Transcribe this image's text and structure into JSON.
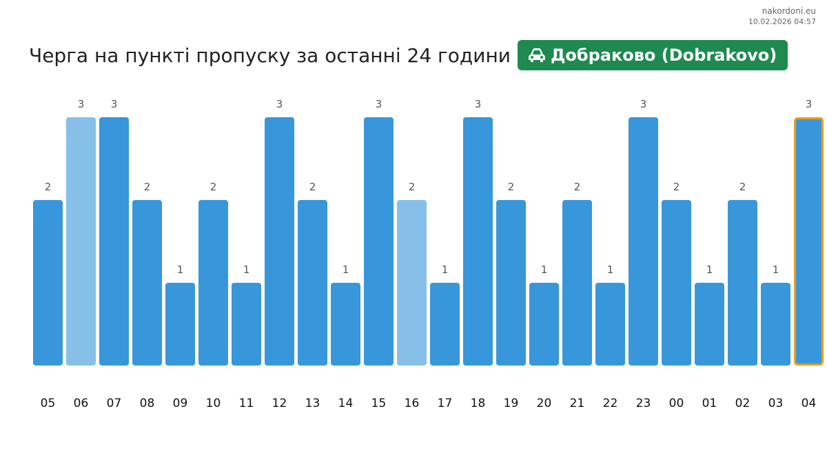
{
  "site": {
    "domain": "nakordoni.eu",
    "datetime": "10.02.2026 04:57"
  },
  "header": {
    "title": "Черга на пункті пропуску за останні 24 години",
    "checkpoint": "Добраково (Dobrakovo)",
    "checkpoint_icon": "car-icon"
  },
  "colors": {
    "bar": "#3897db",
    "bar_light": "#86c0e8",
    "highlight_border": "#f29c18",
    "badge": "#1e8a50"
  },
  "chart_data": {
    "type": "bar",
    "title": "Черга на пункті пропуску за останні 24 години",
    "categories": [
      "05",
      "06",
      "07",
      "08",
      "09",
      "10",
      "11",
      "12",
      "13",
      "14",
      "15",
      "16",
      "17",
      "18",
      "19",
      "20",
      "21",
      "22",
      "23",
      "00",
      "01",
      "02",
      "03",
      "04"
    ],
    "values": [
      2,
      3,
      3,
      2,
      1,
      2,
      1,
      3,
      2,
      1,
      3,
      2,
      1,
      3,
      2,
      1,
      2,
      1,
      3,
      2,
      1,
      2,
      1,
      3
    ],
    "light_categories": [
      "06",
      "16"
    ],
    "highlighted_category": "04",
    "ylim": [
      0,
      3
    ],
    "grid": false,
    "xlabel": "",
    "ylabel": ""
  }
}
